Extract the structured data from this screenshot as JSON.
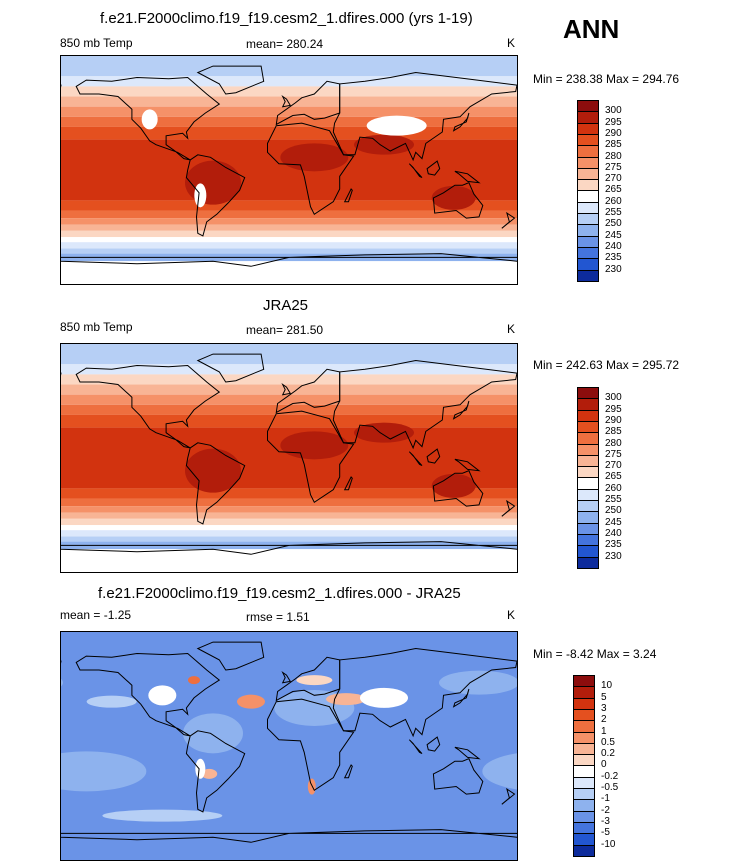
{
  "season": "ANN",
  "panels": [
    {
      "title": "f.e21.F2000climo.f19_f19.cesm2_1.dfires.000 (yrs 1-19)",
      "left_label": "850 mb Temp",
      "center_label": "mean= 280.24",
      "right_label": "K",
      "minmax": "Min = 238.38 Max = 294.76",
      "kind": "model",
      "legend": {
        "labels": [
          "300",
          "295",
          "290",
          "285",
          "280",
          "275",
          "270",
          "265",
          "260",
          "255",
          "250",
          "245",
          "240",
          "235",
          "230"
        ],
        "colors": [
          "#8c0d0d",
          "#b21d0b",
          "#d2330f",
          "#e4501f",
          "#ee6f3f",
          "#f59168",
          "#f8b495",
          "#fbd7c3",
          "#ffffff",
          "#dce8fb",
          "#b6cff5",
          "#8eb2ee",
          "#6a93e7",
          "#4474de",
          "#2256d1",
          "#0d2b9c"
        ]
      }
    },
    {
      "title": "JRA25",
      "left_label": "850 mb Temp",
      "center_label": "mean= 281.50",
      "right_label": "K",
      "minmax": "Min = 242.63 Max = 295.72",
      "kind": "obs",
      "legend": {
        "labels": [
          "300",
          "295",
          "290",
          "285",
          "280",
          "275",
          "270",
          "265",
          "260",
          "255",
          "250",
          "245",
          "240",
          "235",
          "230"
        ],
        "colors": [
          "#8c0d0d",
          "#b21d0b",
          "#d2330f",
          "#e4501f",
          "#ee6f3f",
          "#f59168",
          "#f8b495",
          "#fbd7c3",
          "#ffffff",
          "#dce8fb",
          "#b6cff5",
          "#8eb2ee",
          "#6a93e7",
          "#4474de",
          "#2256d1",
          "#0d2b9c"
        ]
      }
    },
    {
      "title": "f.e21.F2000climo.f19_f19.cesm2_1.dfires.000 - JRA25",
      "left_label": "mean = -1.25",
      "center_label": "rmse = 1.51",
      "right_label": "K",
      "minmax": "Min = -8.42 Max = 3.24",
      "kind": "diff",
      "legend": {
        "labels": [
          "10",
          "5",
          "3",
          "2",
          "1",
          "0.5",
          "0.2",
          "0",
          "-0.2",
          "-0.5",
          "-1",
          "-2",
          "-3",
          "-5",
          "-10"
        ],
        "colors": [
          "#8c0d0d",
          "#b21d0b",
          "#d2330f",
          "#e4501f",
          "#ee6f3f",
          "#f59168",
          "#f8b495",
          "#fbd7c3",
          "#ffffff",
          "#dce8fb",
          "#b6cff5",
          "#8eb2ee",
          "#6a93e7",
          "#4474de",
          "#2256d1",
          "#0d2b9c"
        ]
      }
    }
  ]
}
